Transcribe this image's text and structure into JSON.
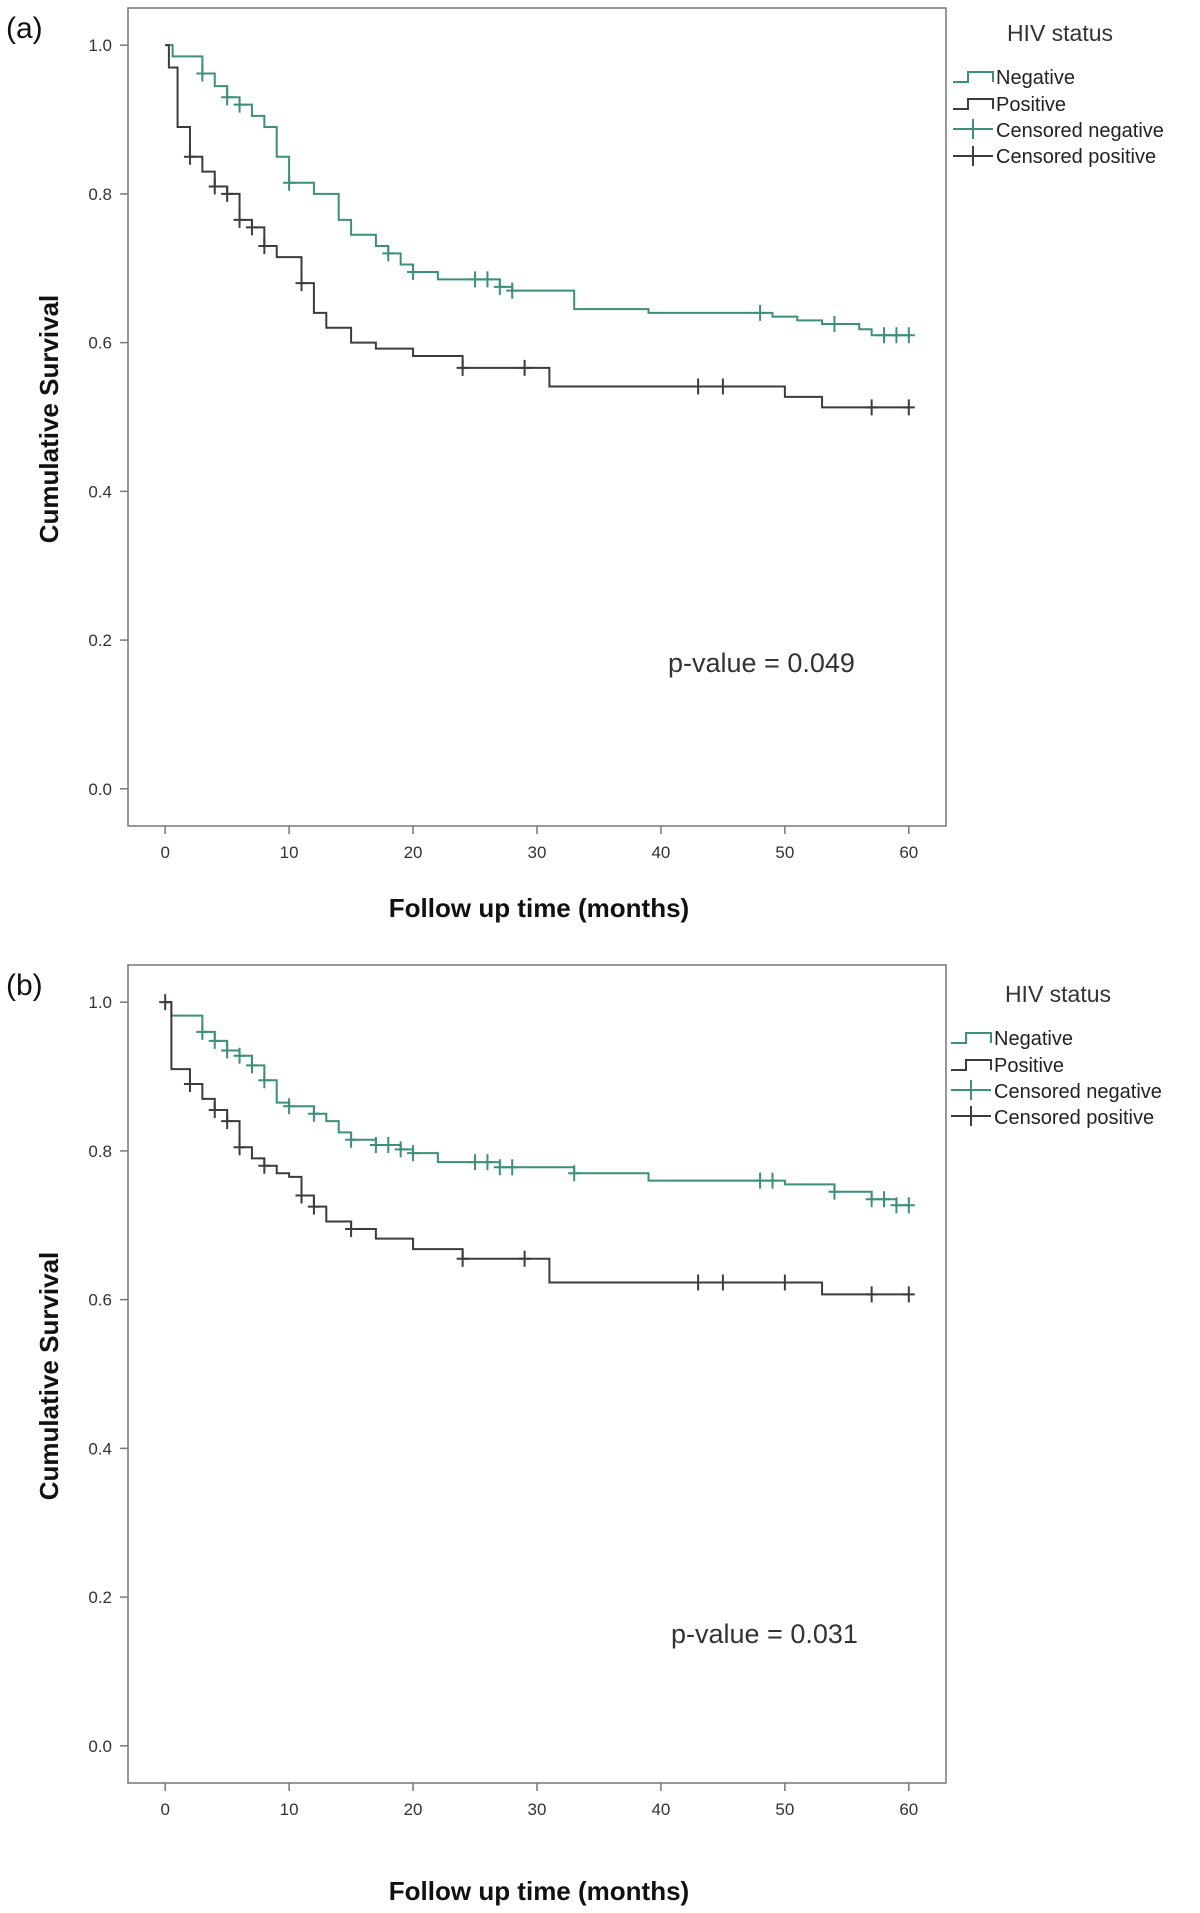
{
  "chart_data": [
    {
      "type": "line",
      "panel_label": "(a)",
      "title": "",
      "xlabel": "Follow up time (months)",
      "ylabel": "Cumulative Survival",
      "xlim": [
        -3,
        63
      ],
      "ylim": [
        -0.05,
        1.05
      ],
      "xticks": [
        0,
        10,
        20,
        30,
        40,
        50,
        60
      ],
      "yticks": [
        0.0,
        0.2,
        0.4,
        0.6,
        0.8,
        1.0
      ],
      "xtick_labels": [
        "0",
        "10",
        "20",
        "30",
        "40",
        "50",
        "60"
      ],
      "ytick_labels": [
        "0.0",
        "0.2",
        "0.4",
        "0.6",
        "0.8",
        "1.0"
      ],
      "legend_title": "HIV status",
      "legend_position": "right",
      "legend": [
        "Negative",
        "Positive",
        "Censored negative",
        "Censored positive"
      ],
      "annotation": "p-value = 0.049",
      "series": [
        {
          "name": "Negative",
          "color": "#3a8f7d",
          "steps": [
            [
              0,
              1.0
            ],
            [
              0.6,
              0.985
            ],
            [
              3,
              0.962
            ],
            [
              4,
              0.945
            ],
            [
              5,
              0.93
            ],
            [
              6,
              0.92
            ],
            [
              7,
              0.905
            ],
            [
              8,
              0.89
            ],
            [
              9,
              0.85
            ],
            [
              10,
              0.815
            ],
            [
              12,
              0.8
            ],
            [
              14,
              0.765
            ],
            [
              15,
              0.745
            ],
            [
              17,
              0.73
            ],
            [
              18,
              0.72
            ],
            [
              19,
              0.705
            ],
            [
              20,
              0.695
            ],
            [
              22,
              0.685
            ],
            [
              27,
              0.675
            ],
            [
              28,
              0.67
            ],
            [
              33,
              0.645
            ],
            [
              39,
              0.64
            ],
            [
              49,
              0.635
            ],
            [
              51,
              0.63
            ],
            [
              53,
              0.625
            ],
            [
              56,
              0.618
            ],
            [
              57,
              0.61
            ]
          ],
          "censored": [
            3,
            5,
            6,
            10,
            18,
            20,
            25,
            26,
            27,
            28,
            48,
            54,
            58,
            59,
            60
          ],
          "end_x": 60
        },
        {
          "name": "Positive",
          "color": "#3c3c3c",
          "steps": [
            [
              0,
              1.0
            ],
            [
              0.3,
              0.97
            ],
            [
              1,
              0.89
            ],
            [
              2,
              0.85
            ],
            [
              3,
              0.83
            ],
            [
              4,
              0.81
            ],
            [
              5,
              0.8
            ],
            [
              6,
              0.765
            ],
            [
              7,
              0.755
            ],
            [
              8,
              0.73
            ],
            [
              9,
              0.715
            ],
            [
              11,
              0.68
            ],
            [
              12,
              0.64
            ],
            [
              13,
              0.62
            ],
            [
              15,
              0.6
            ],
            [
              17,
              0.592
            ],
            [
              20,
              0.582
            ],
            [
              24,
              0.566
            ],
            [
              31,
              0.541
            ],
            [
              50,
              0.527
            ],
            [
              53,
              0.513
            ]
          ],
          "censored": [
            2,
            4,
            5,
            6,
            7,
            8,
            11,
            24,
            29,
            43,
            45,
            57,
            60
          ],
          "end_x": 60
        }
      ]
    },
    {
      "type": "line",
      "panel_label": "(b)",
      "title": "",
      "xlabel": "Follow up time (months)",
      "ylabel": "Cumulative Survival",
      "xlim": [
        -3,
        63
      ],
      "ylim": [
        -0.05,
        1.05
      ],
      "xticks": [
        0,
        10,
        20,
        30,
        40,
        50,
        60
      ],
      "yticks": [
        0.0,
        0.2,
        0.4,
        0.6,
        0.8,
        1.0
      ],
      "xtick_labels": [
        "0",
        "10",
        "20",
        "30",
        "40",
        "50",
        "60"
      ],
      "ytick_labels": [
        "0.0",
        "0.2",
        "0.4",
        "0.6",
        "0.8",
        "1.0"
      ],
      "legend_title": "HIV status",
      "legend_position": "right",
      "legend": [
        "Negative",
        "Positive",
        "Censored negative",
        "Censored positive"
      ],
      "annotation": "p-value = 0.031",
      "series": [
        {
          "name": "Negative",
          "color": "#3a8f7d",
          "steps": [
            [
              0,
              1.0
            ],
            [
              0.5,
              0.982
            ],
            [
              3,
              0.96
            ],
            [
              4,
              0.948
            ],
            [
              5,
              0.935
            ],
            [
              6,
              0.928
            ],
            [
              7,
              0.915
            ],
            [
              8,
              0.895
            ],
            [
              9,
              0.865
            ],
            [
              10,
              0.86
            ],
            [
              12,
              0.85
            ],
            [
              13,
              0.84
            ],
            [
              14,
              0.825
            ],
            [
              15,
              0.815
            ],
            [
              17,
              0.808
            ],
            [
              19,
              0.802
            ],
            [
              20,
              0.797
            ],
            [
              22,
              0.785
            ],
            [
              27,
              0.778
            ],
            [
              33,
              0.77
            ],
            [
              39,
              0.76
            ],
            [
              50,
              0.755
            ],
            [
              54,
              0.745
            ],
            [
              57,
              0.735
            ],
            [
              59,
              0.727
            ]
          ],
          "censored": [
            3,
            4,
            5,
            6,
            7,
            8,
            10,
            12,
            15,
            17,
            18,
            19,
            20,
            25,
            26,
            27,
            28,
            33,
            48,
            49,
            54,
            57,
            58,
            59,
            60
          ],
          "end_x": 60
        },
        {
          "name": "Positive",
          "color": "#3c3c3c",
          "steps": [
            [
              0,
              1.0
            ],
            [
              0.5,
              0.91
            ],
            [
              2,
              0.89
            ],
            [
              3,
              0.87
            ],
            [
              4,
              0.855
            ],
            [
              5,
              0.84
            ],
            [
              6,
              0.805
            ],
            [
              7,
              0.79
            ],
            [
              8,
              0.78
            ],
            [
              9,
              0.77
            ],
            [
              10,
              0.765
            ],
            [
              11,
              0.74
            ],
            [
              12,
              0.725
            ],
            [
              13,
              0.705
            ],
            [
              15,
              0.695
            ],
            [
              17,
              0.682
            ],
            [
              20,
              0.668
            ],
            [
              24,
              0.655
            ],
            [
              31,
              0.623
            ],
            [
              53,
              0.607
            ]
          ],
          "censored": [
            0,
            2,
            4,
            5,
            6,
            8,
            11,
            12,
            15,
            24,
            29,
            43,
            45,
            50,
            57,
            60
          ],
          "end_x": 60
        }
      ]
    }
  ]
}
